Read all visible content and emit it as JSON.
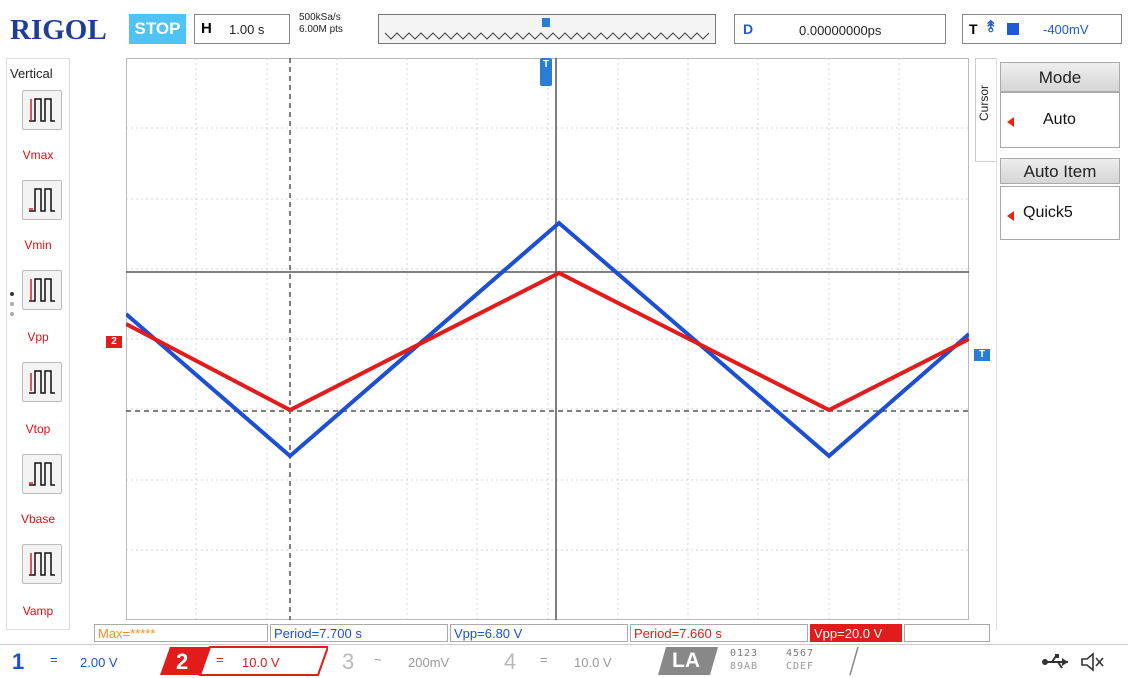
{
  "header": {
    "brand": "RIGOL",
    "run_state": "STOP",
    "horizontal_label": "H",
    "horizontal_value": "1.00 s",
    "sample_rate": "500kSa/s",
    "memory_depth": "6.00M pts",
    "delay_label": "D",
    "delay_value": "0.00000000ps",
    "trigger_label": "T",
    "trigger_level": "-400mV"
  },
  "left_menu": {
    "title": "Vertical",
    "items": [
      {
        "label": "Vmax"
      },
      {
        "label": "Vmin"
      },
      {
        "label": "Vpp"
      },
      {
        "label": "Vtop"
      },
      {
        "label": "Vbase"
      },
      {
        "label": "Vamp"
      }
    ]
  },
  "right_menu": {
    "cursor_tab": "Cursor",
    "mode_title": "Mode",
    "mode_value": "Auto",
    "auto_item_title": "Auto Item",
    "auto_item_value": "Quick5"
  },
  "markers": {
    "ch2_marker": "2",
    "trigger_top": "T",
    "trigger_right": "T"
  },
  "measurements": {
    "max": "Max=*****",
    "ch1_period": "Period=7.700 s",
    "ch1_vpp": "Vpp=6.80 V",
    "ch2_period": "Period=7.660 s",
    "ch2_vpp": "Vpp=20.0 V"
  },
  "channels": [
    {
      "num": "1",
      "coupling": "=",
      "scale": "2.00 V",
      "color": "#1d4fd6"
    },
    {
      "num": "2",
      "coupling": "=",
      "scale": "10.0 V",
      "color": "#e21b1b"
    },
    {
      "num": "3",
      "coupling": "~",
      "scale": "200mV",
      "color": "#b8b8b8"
    },
    {
      "num": "4",
      "coupling": "=",
      "scale": "10.0 V",
      "color": "#b8b8b8"
    }
  ],
  "la": {
    "label": "LA",
    "digits_row1a": "0123",
    "digits_row1b": "4567",
    "digits_row2a": "89AB",
    "digits_row2b": "CDEF"
  },
  "status_icons": [
    "usb-icon",
    "speaker-muted-icon"
  ],
  "colors": {
    "ch1": "#1d4fd6",
    "ch2": "#e21b1b",
    "brand": "#1e3c9c",
    "stop_badge": "#4fc3f3"
  }
}
